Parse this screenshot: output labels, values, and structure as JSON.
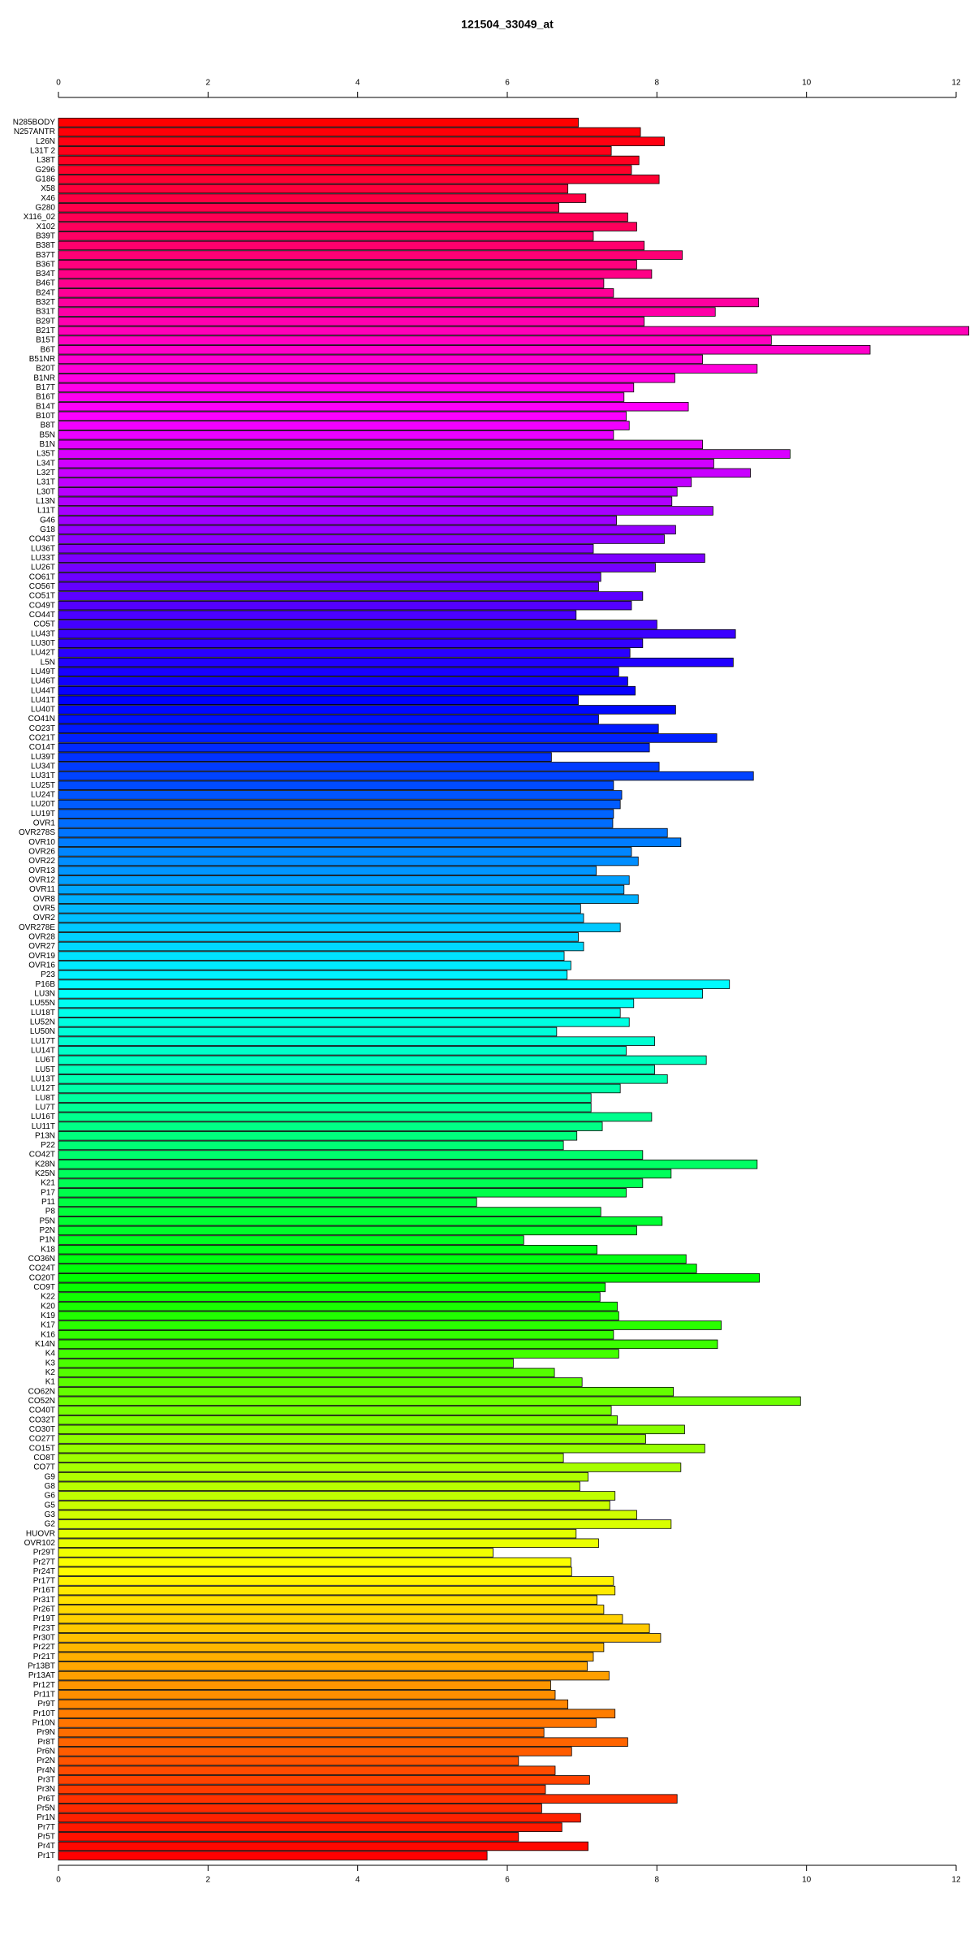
{
  "chart_data": {
    "type": "bar",
    "orientation": "horizontal",
    "title": "121504_33049_at",
    "categories": [
      "N285BODY",
      "N257ANTR",
      "L26N",
      "L31T 2",
      "L38T",
      "G296",
      "G186",
      "X58",
      "X46",
      "G280",
      "X116_02",
      "X102",
      "B39T",
      "B38T",
      "B37T",
      "B36T",
      "B34T",
      "B46T",
      "B24T",
      "B32T",
      "B31T",
      "B29T",
      "B21T",
      "B15T",
      "B6T",
      "B51NR",
      "B20T",
      "B1NR",
      "B17T",
      "B16T",
      "B14T",
      "B10T",
      "B8T",
      "B5N",
      "B1N",
      "L35T",
      "L34T",
      "L32T",
      "L31T",
      "L30T",
      "L13N",
      "L11T",
      "G46",
      "G18",
      "CO43T",
      "LU36T",
      "LU33T",
      "LU26T",
      "CO61T",
      "CO56T",
      "CO51T",
      "CO49T",
      "CO44T",
      "CO5T",
      "LU43T",
      "LU30T",
      "LU42T",
      "L5N",
      "LU49T",
      "LU46T",
      "LU44T",
      "LU41T",
      "LU40T",
      "CO41N",
      "CO23T",
      "CO21T",
      "CO14T",
      "LU39T",
      "LU34T",
      "LU31T",
      "LU25T",
      "LU24T",
      "LU20T",
      "LU19T",
      "OVR1",
      "OVR278S",
      "OVR10",
      "OVR26",
      "OVR22",
      "OVR13",
      "OVR12",
      "OVR11",
      "OVR8",
      "OVR5",
      "OVR2",
      "OVR278E",
      "OVR28",
      "OVR27",
      "OVR19",
      "OVR16",
      "P23",
      "P16B",
      "LU3N",
      "LU55N",
      "LU18T",
      "LU52N",
      "LU50N",
      "LU17T",
      "LU14T",
      "LU6T",
      "LU5T",
      "LU13T",
      "LU12T",
      "LU8T",
      "LU7T",
      "LU16T",
      "LU11T",
      "P13N",
      "P22",
      "CO42T",
      "K28N",
      "K25N",
      "K21",
      "P17",
      "P11",
      "P8",
      "P5N",
      "P2N",
      "P1N",
      "K18",
      "CO36N",
      "CO24T",
      "CO20T",
      "CO9T",
      "K22",
      "K20",
      "K19",
      "K17",
      "K16",
      "K14N",
      "K4",
      "K3",
      "K2",
      "K1",
      "CO62N",
      "CO52N",
      "CO40T",
      "CO32T",
      "CO30T",
      "CO27T",
      "CO15T",
      "CO8T",
      "CO7T",
      "G9",
      "G8",
      "G6",
      "G5",
      "G3",
      "G2",
      "HUOVR",
      "OVR102",
      "Pr29T",
      "Pr27T",
      "Pr24T",
      "Pr17T",
      "Pr16T",
      "Pr31T",
      "Pr26T",
      "Pr19T",
      "Pr23T",
      "Pr30T",
      "Pr22T",
      "Pr21T",
      "Pr13BT",
      "Pr13AT",
      "Pr12T",
      "Pr11T",
      "Pr9T",
      "Pr10T",
      "Pr10N",
      "Pr9N",
      "Pr8T",
      "Pr6N",
      "Pr2N",
      "Pr4N",
      "Pr3T",
      "Pr3N",
      "Pr6T",
      "Pr5N",
      "Pr1N",
      "Pr7T",
      "Pr5T",
      "Pr4T",
      "Pr1T"
    ],
    "values": [
      6.95,
      7.78,
      8.1,
      7.39,
      7.76,
      7.66,
      8.03,
      6.81,
      7.05,
      6.69,
      7.61,
      7.73,
      7.15,
      7.83,
      8.34,
      7.73,
      7.93,
      7.29,
      7.42,
      9.36,
      8.78,
      7.83,
      12.17,
      9.53,
      10.85,
      8.61,
      9.34,
      8.24,
      7.69,
      7.56,
      8.42,
      7.59,
      7.63,
      7.42,
      8.61,
      9.78,
      8.76,
      9.25,
      8.46,
      8.27,
      8.2,
      8.75,
      7.46,
      8.25,
      8.1,
      7.15,
      8.64,
      7.98,
      7.25,
      7.22,
      7.81,
      7.66,
      6.92,
      8.0,
      9.05,
      7.81,
      7.64,
      9.02,
      7.49,
      7.61,
      7.71,
      6.95,
      8.25,
      7.22,
      8.02,
      8.8,
      7.9,
      6.59,
      8.03,
      9.29,
      7.42,
      7.53,
      7.51,
      7.42,
      7.41,
      8.14,
      8.32,
      7.66,
      7.75,
      7.19,
      7.63,
      7.56,
      7.75,
      6.98,
      7.02,
      7.51,
      6.95,
      7.02,
      6.76,
      6.85,
      6.8,
      8.97,
      8.61,
      7.69,
      7.51,
      7.63,
      6.66,
      7.97,
      7.59,
      8.66,
      7.97,
      8.14,
      7.51,
      7.12,
      7.12,
      7.93,
      7.27,
      6.93,
      6.75,
      7.81,
      9.34,
      8.19,
      7.81,
      7.59,
      5.59,
      7.25,
      8.07,
      7.73,
      6.22,
      7.2,
      8.39,
      8.53,
      9.37,
      7.31,
      7.24,
      7.47,
      7.49,
      8.86,
      7.42,
      8.81,
      7.49,
      6.08,
      6.63,
      7.0,
      8.22,
      9.92,
      7.39,
      7.47,
      8.37,
      7.85,
      8.64,
      6.75,
      8.32,
      7.08,
      6.97,
      7.44,
      7.37,
      7.73,
      8.19,
      6.92,
      7.22,
      5.81,
      6.85,
      6.86,
      7.42,
      7.44,
      7.2,
      7.29,
      7.54,
      7.9,
      8.05,
      7.29,
      7.15,
      7.07,
      7.36,
      6.58,
      6.64,
      6.81,
      7.44,
      7.19,
      6.49,
      7.61,
      6.86,
      6.15,
      6.64,
      7.1,
      6.51,
      8.27,
      6.46,
      6.98,
      6.73,
      6.15,
      7.08,
      5.73
    ],
    "palette": [
      "#ff0000",
      "#ff00ff",
      "#0000ff",
      "#00ffff",
      "#00ff00",
      "#ffff00",
      "#ff0000"
    ],
    "xlim": [
      0,
      12
    ],
    "xticks": [
      0,
      2,
      4,
      6,
      8,
      10,
      12
    ]
  }
}
